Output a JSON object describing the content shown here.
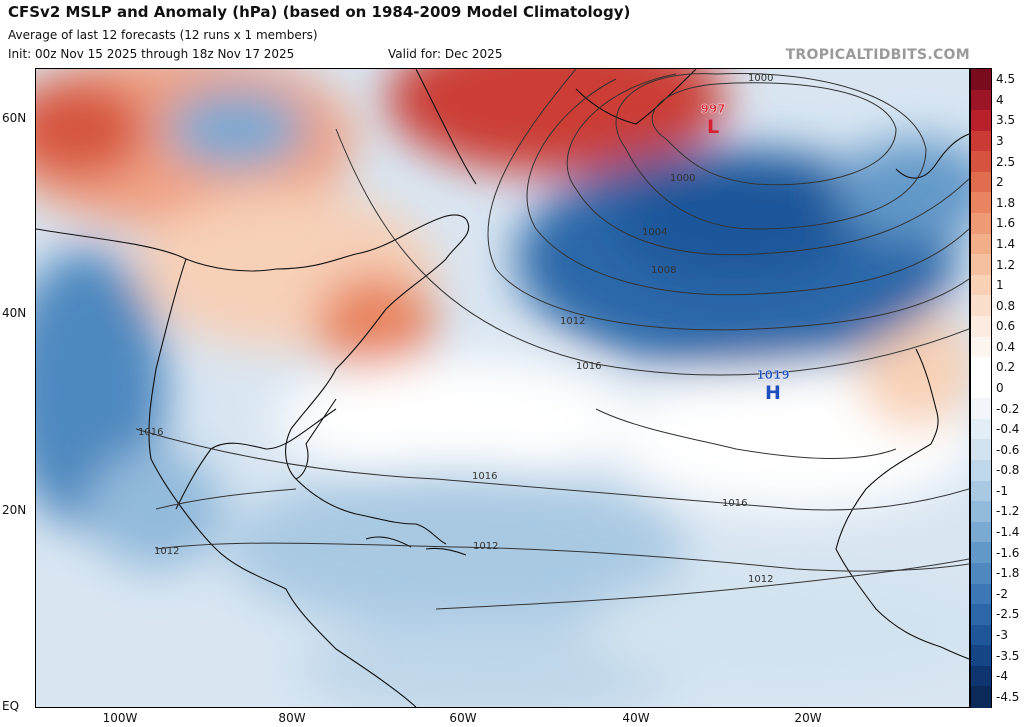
{
  "header": {
    "title": "CFSv2 MSLP and Anomaly (hPa) (based on 1984-2009 Model Climatology)",
    "subtitle": "Average of last 12 forecasts (12 runs x 1 members)",
    "init": "Init: 00z Nov 15 2025 through 18z Nov 17 2025",
    "valid": "Valid for: Dec 2025",
    "brand": "TROPICALTIDBITS.COM"
  },
  "map": {
    "lat_labels": [
      "60N",
      "40N",
      "20N",
      "EQ"
    ],
    "lon_labels": [
      "100W",
      "80W",
      "60W",
      "40W",
      "20W"
    ],
    "isobar_labels": [
      "1000",
      "1000",
      "1004",
      "1008",
      "1012",
      "1016",
      "1016",
      "1016",
      "1016",
      "1012",
      "1012",
      "1012"
    ],
    "pressure_centers": [
      {
        "kind": "low",
        "letter": "L",
        "value": "997",
        "color": "#d62030"
      },
      {
        "kind": "high",
        "letter": "H",
        "value": "1019",
        "color": "#1f4fbf"
      }
    ]
  },
  "colorbar": {
    "labels": [
      "4.5",
      "4",
      "3.5",
      "3",
      "2.5",
      "2",
      "1.8",
      "1.6",
      "1.4",
      "1.2",
      "1",
      "0.8",
      "0.6",
      "0.4",
      "0.2",
      "0",
      "-0.2",
      "-0.4",
      "-0.6",
      "-0.8",
      "-1",
      "-1.2",
      "-1.4",
      "-1.6",
      "-1.8",
      "-2",
      "-2.5",
      "-3",
      "-3.5",
      "-4",
      "-4.5"
    ],
    "colors": [
      "#7a0a1e",
      "#9c1526",
      "#b8202c",
      "#cb3a34",
      "#d6543f",
      "#e06e4e",
      "#e8845f",
      "#ee9a74",
      "#f2ae89",
      "#f5c09f",
      "#f8d1b6",
      "#fae0cc",
      "#fcece1",
      "#fdf5ef",
      "#ffffff",
      "#ffffff",
      "#f2f6fa",
      "#e3edf5",
      "#d2e3ef",
      "#bfd7ea",
      "#a9c9e3",
      "#92badb",
      "#7aa9d2",
      "#6399c9",
      "#4e88bf",
      "#3c78b5",
      "#2c67a9",
      "#1f569a",
      "#164586",
      "#0f3570",
      "#0b2a5a"
    ]
  }
}
